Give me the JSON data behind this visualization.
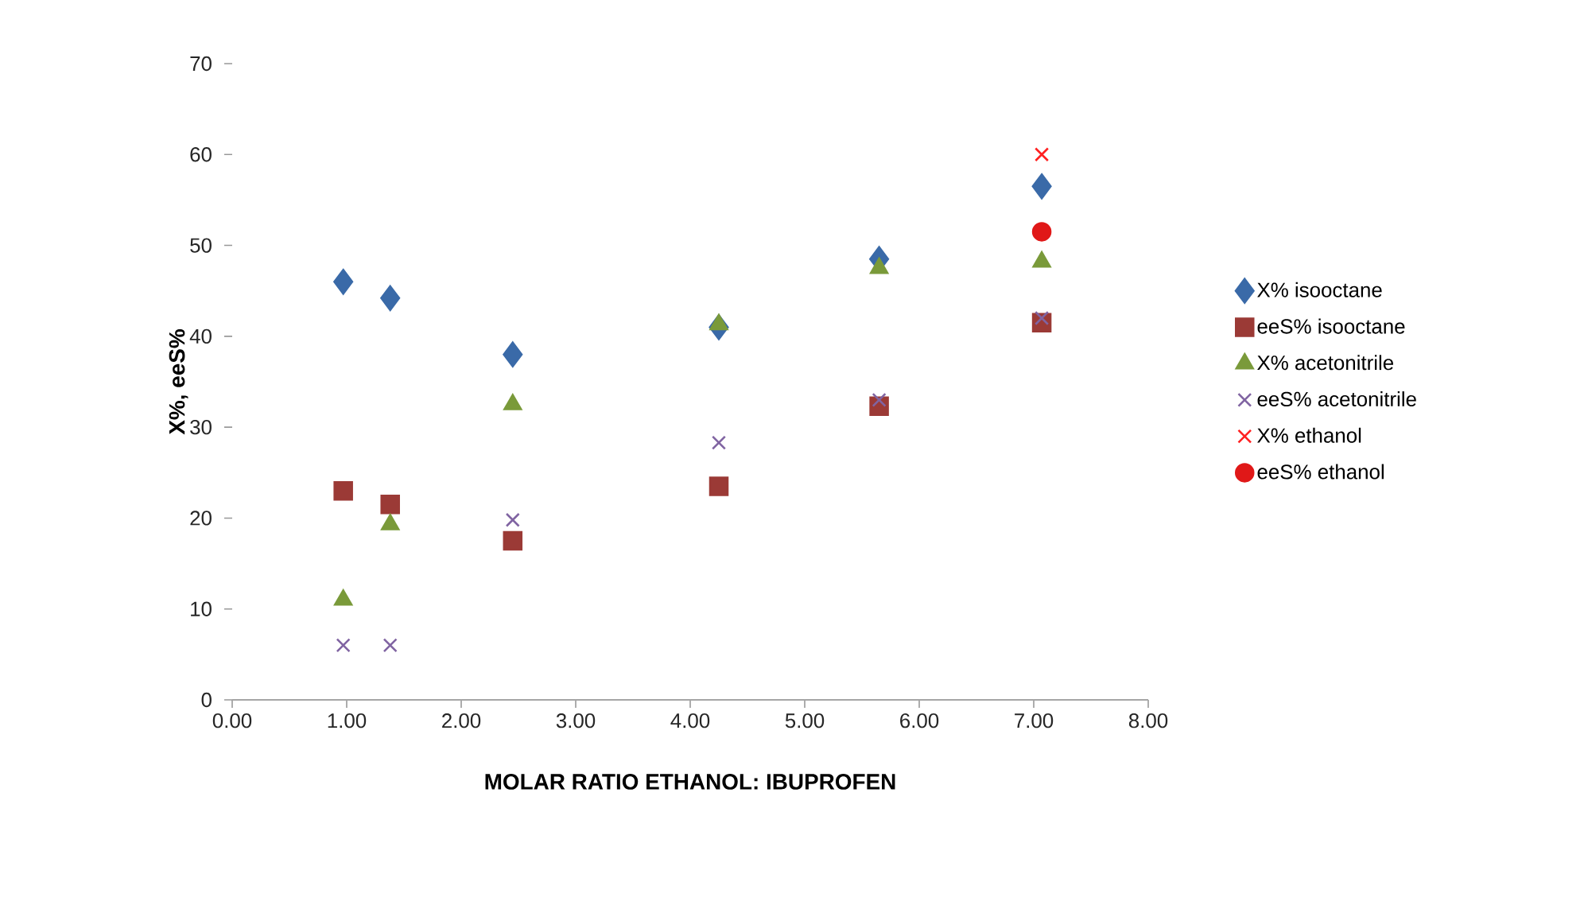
{
  "chart_data": {
    "type": "scatter",
    "xlabel": "MOLAR RATIO ETHANOL: IBUPROFEN",
    "ylabel": "X%, eeS%",
    "xlim": [
      0,
      8
    ],
    "xticks": [
      {
        "value": 0,
        "label": "0.00"
      },
      {
        "value": 1,
        "label": "1.00"
      },
      {
        "value": 2,
        "label": "2.00"
      },
      {
        "value": 3,
        "label": "3.00"
      },
      {
        "value": 4,
        "label": "4.00"
      },
      {
        "value": 5,
        "label": "5.00"
      },
      {
        "value": 6,
        "label": "6.00"
      },
      {
        "value": 7,
        "label": "7.00"
      },
      {
        "value": 8,
        "label": "8.00"
      }
    ],
    "ylim": [
      0,
      70
    ],
    "yticks": [
      0,
      10,
      20,
      30,
      40,
      50,
      60,
      70
    ],
    "legend": "right",
    "grid": false,
    "series": [
      {
        "name": "X% isooctane",
        "color": "#3a6aa8",
        "marker": "diamond",
        "x": [
          0.97,
          1.38,
          2.45,
          4.25,
          5.65,
          7.07
        ],
        "values": [
          46,
          44.2,
          38,
          41,
          48.5,
          56.5
        ]
      },
      {
        "name": "eeS% isooctane",
        "color": "#9b3a36",
        "marker": "square",
        "x": [
          0.97,
          1.38,
          2.45,
          4.25,
          5.65,
          7.07
        ],
        "values": [
          23,
          21.5,
          17.5,
          23.5,
          32.3,
          41.5
        ]
      },
      {
        "name": "X% acetonitrile",
        "color": "#7a9a3a",
        "marker": "triangle",
        "x": [
          0.97,
          1.38,
          2.45,
          4.25,
          5.65,
          7.07
        ],
        "values": [
          11,
          19.3,
          32.5,
          41.3,
          47.5,
          48.2
        ]
      },
      {
        "name": "eeS% acetonitrile",
        "color": "#8064a2",
        "marker": "cross",
        "x": [
          0.97,
          1.38,
          2.45,
          4.25,
          5.65,
          7.07
        ],
        "values": [
          6,
          6,
          19.8,
          28.3,
          33,
          42
        ]
      },
      {
        "name": "X% ethanol",
        "color": "#ff2020",
        "marker": "cross",
        "x": [
          7.07
        ],
        "values": [
          60
        ]
      },
      {
        "name": "eeS% ethanol",
        "color": "#e01818",
        "marker": "circle",
        "x": [
          7.07
        ],
        "values": [
          51.5
        ]
      }
    ]
  }
}
